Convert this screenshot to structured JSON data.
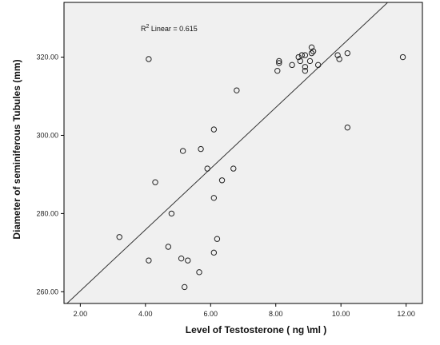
{
  "chart_data": {
    "type": "scatter",
    "xlabel": "Level of  Testosterone ( ng \\ml )",
    "ylabel": "Diameter of seminiferous Tubules (mm)",
    "xlim": [
      1.5,
      12.5
    ],
    "ylim": [
      257,
      334
    ],
    "x_ticks": [
      2,
      4,
      6,
      8,
      10,
      12
    ],
    "x_tick_labels": [
      "2.00",
      "4.00",
      "6.00",
      "8.00",
      "10.00",
      "12.00"
    ],
    "y_ticks": [
      260,
      280,
      300,
      320
    ],
    "y_tick_labels": [
      "260.00",
      "280.00",
      "300.00",
      "320.00"
    ],
    "grid": false,
    "annotation": {
      "prefix": "R",
      "sup": "2",
      "text": " Linear = 0.615"
    },
    "fit_line": {
      "x1": 1.5,
      "y1": 256.3,
      "x2": 11.5,
      "y2": 334.5
    },
    "points": [
      {
        "x": 3.2,
        "y": 274
      },
      {
        "x": 4.1,
        "y": 268
      },
      {
        "x": 4.1,
        "y": 319.5
      },
      {
        "x": 4.3,
        "y": 288
      },
      {
        "x": 4.7,
        "y": 271.5
      },
      {
        "x": 4.8,
        "y": 280
      },
      {
        "x": 5.1,
        "y": 268.5
      },
      {
        "x": 5.15,
        "y": 296
      },
      {
        "x": 5.2,
        "y": 261.2
      },
      {
        "x": 5.3,
        "y": 268
      },
      {
        "x": 5.65,
        "y": 265
      },
      {
        "x": 5.7,
        "y": 296.5
      },
      {
        "x": 5.9,
        "y": 291.5
      },
      {
        "x": 6.1,
        "y": 270
      },
      {
        "x": 6.1,
        "y": 284
      },
      {
        "x": 6.1,
        "y": 301.5
      },
      {
        "x": 6.2,
        "y": 273.5
      },
      {
        "x": 6.35,
        "y": 288.5
      },
      {
        "x": 6.7,
        "y": 291.5
      },
      {
        "x": 6.8,
        "y": 311.5
      },
      {
        "x": 8.05,
        "y": 316.5
      },
      {
        "x": 8.1,
        "y": 318.5
      },
      {
        "x": 8.1,
        "y": 319
      },
      {
        "x": 8.5,
        "y": 318
      },
      {
        "x": 8.7,
        "y": 320
      },
      {
        "x": 8.75,
        "y": 319
      },
      {
        "x": 8.8,
        "y": 320.5
      },
      {
        "x": 8.9,
        "y": 320.5
      },
      {
        "x": 8.9,
        "y": 316.5
      },
      {
        "x": 8.9,
        "y": 317.5
      },
      {
        "x": 9.05,
        "y": 319
      },
      {
        "x": 9.1,
        "y": 321
      },
      {
        "x": 9.1,
        "y": 322.5
      },
      {
        "x": 9.15,
        "y": 321.5
      },
      {
        "x": 9.3,
        "y": 318
      },
      {
        "x": 9.9,
        "y": 320.5
      },
      {
        "x": 9.95,
        "y": 319.5
      },
      {
        "x": 10.2,
        "y": 321
      },
      {
        "x": 10.2,
        "y": 302
      },
      {
        "x": 11.9,
        "y": 320
      }
    ]
  }
}
